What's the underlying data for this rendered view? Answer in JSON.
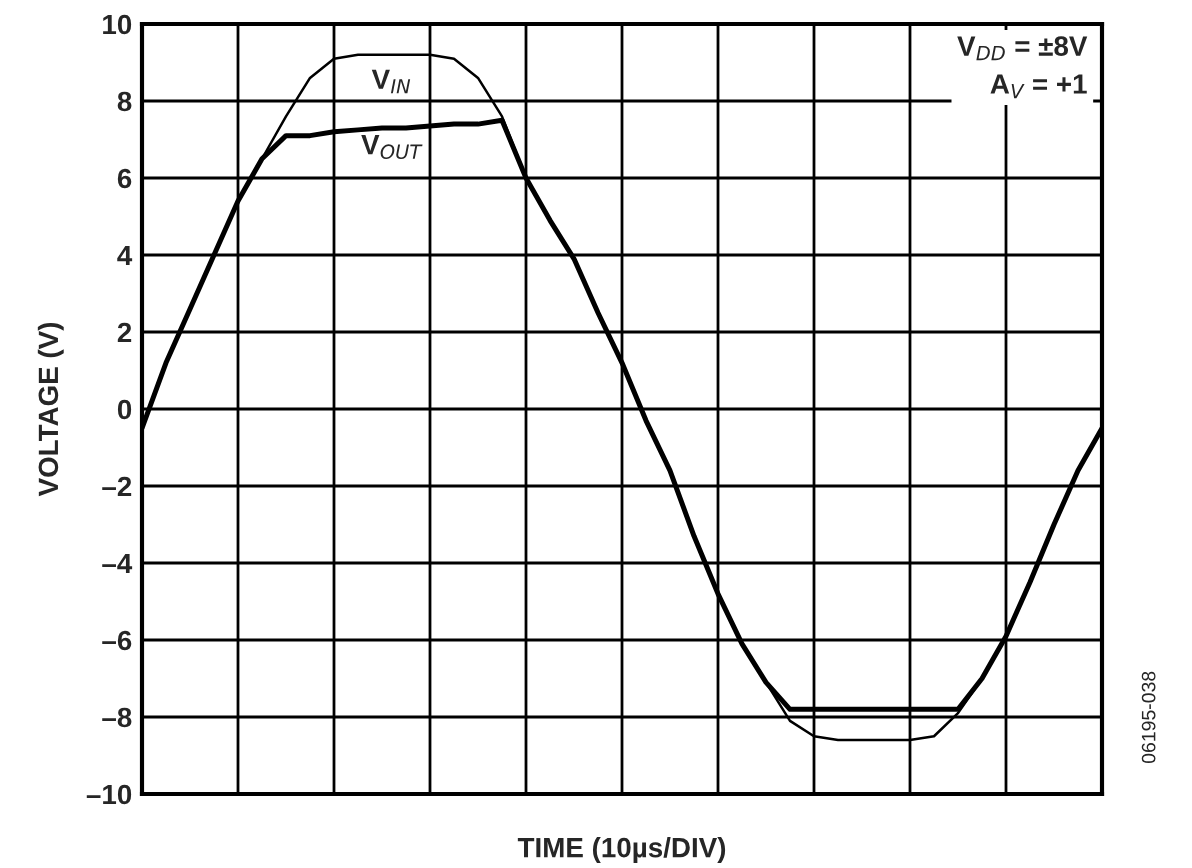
{
  "chart_data": {
    "type": "line",
    "xlabel": "TIME (10µs/DIV)",
    "ylabel": "VOLTAGE (V)",
    "categories": [
      null,
      null,
      null,
      null,
      null,
      null,
      null,
      null,
      null,
      null,
      null,
      null,
      null,
      null,
      null,
      null,
      null,
      null,
      null,
      null,
      null,
      null,
      null,
      null,
      null,
      null,
      null,
      null,
      null,
      null,
      null,
      null,
      null,
      null,
      null,
      null,
      null,
      null,
      null,
      null,
      null
    ],
    "series": [
      {
        "name": "V$_{IN}$",
        "color": "#000000",
        "values": [
          -0.5,
          1.2,
          2.6,
          4,
          5.4,
          6.5,
          7.6,
          8.6,
          9.1,
          9.2,
          9.2,
          9.2,
          9.2,
          9.1,
          8.6,
          7.6,
          6.0,
          4.9,
          3.9,
          2.5,
          1.2,
          -0.3,
          -1.6,
          -3.3,
          -4.8,
          -6.1,
          -7.1,
          -8.1,
          -8.5,
          -8.6,
          -8.6,
          -8.6,
          -8.6,
          -8.5,
          -7.9,
          -7.0,
          -5.9,
          -4.5,
          -3.0,
          -1.6,
          -0.5
        ]
      },
      {
        "name": "V$_{OUT}$",
        "color": "#000000",
        "values": [
          -0.5,
          1.2,
          2.6,
          4,
          5.4,
          6.5,
          7.1,
          7.1,
          7.2,
          7.25,
          7.3,
          7.3,
          7.35,
          7.4,
          7.4,
          7.5,
          6.0,
          4.9,
          3.9,
          2.5,
          1.2,
          -0.3,
          -1.6,
          -3.3,
          -4.8,
          -6.1,
          -7.1,
          -7.8,
          -7.8,
          -7.8,
          -7.8,
          -7.8,
          -7.8,
          -7.8,
          -7.8,
          -7.0,
          -5.9,
          -4.5,
          -3.0,
          -1.6,
          -0.5
        ]
      }
    ],
    "ylim": [
      -10,
      10
    ],
    "yticks": [
      {
        "value": -10,
        "label": "–10"
      },
      {
        "value": -8,
        "label": "–8"
      },
      {
        "value": -6,
        "label": "–6"
      },
      {
        "value": -4,
        "label": "–4"
      },
      {
        "value": -2,
        "label": "–2"
      },
      0,
      2,
      4,
      6,
      8,
      10
    ],
    "grid": true,
    "annotations": [
      "V$_{DD}$ = ±8V\nA$_{V}$ = +1",
      "06195-038"
    ]
  }
}
